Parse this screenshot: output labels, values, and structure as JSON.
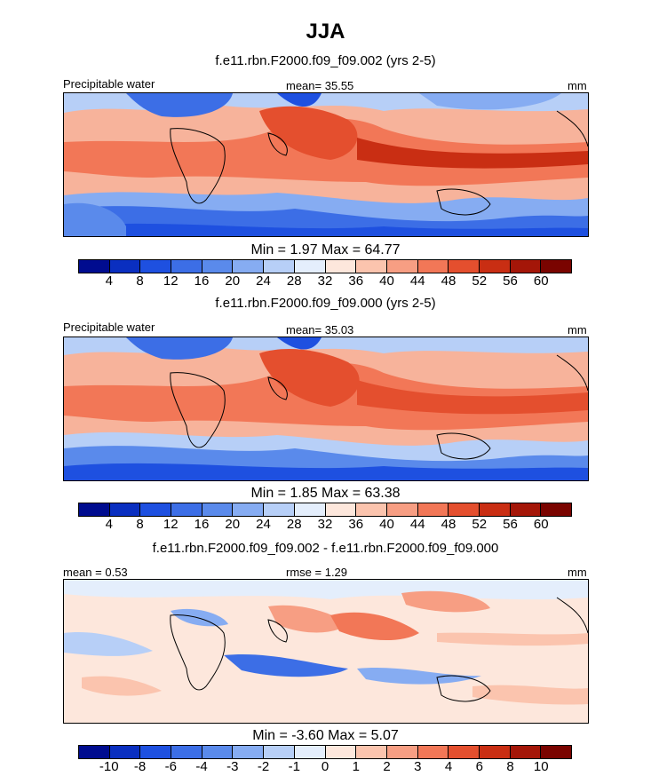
{
  "figure": {
    "title": "JJA",
    "units": "mm"
  },
  "chart_data": [
    {
      "type": "heatmap",
      "title": "f.e11.rbn.F2000.f09_f09.002 (yrs 2-5)",
      "variable": "Precipitable water",
      "mean_label": "mean=",
      "mean": "35.55",
      "units": "mm",
      "stats_text": "Min =   1.97 Max =  64.77",
      "colorbar": {
        "ticks": [
          "4",
          "8",
          "12",
          "16",
          "20",
          "24",
          "28",
          "32",
          "36",
          "40",
          "44",
          "48",
          "52",
          "56",
          "60"
        ],
        "colors": [
          "#000c8f",
          "#0a2fc0",
          "#1e50e0",
          "#3c6ee6",
          "#5a8aeb",
          "#86acf2",
          "#b7cff7",
          "#e4eefc",
          "#fde7dc",
          "#fbc4ae",
          "#f79e83",
          "#f27757",
          "#e44f2e",
          "#c92e13",
          "#a41608",
          "#7a0400"
        ]
      }
    },
    {
      "type": "heatmap",
      "title": "f.e11.rbn.F2000.f09_f09.000 (yrs 2-5)",
      "variable": "Precipitable water",
      "mean_label": "mean=",
      "mean": "35.03",
      "units": "mm",
      "stats_text": "Min =   1.85 Max =  63.38",
      "colorbar": {
        "ticks": [
          "4",
          "8",
          "12",
          "16",
          "20",
          "24",
          "28",
          "32",
          "36",
          "40",
          "44",
          "48",
          "52",
          "56",
          "60"
        ],
        "colors": [
          "#000c8f",
          "#0a2fc0",
          "#1e50e0",
          "#3c6ee6",
          "#5a8aeb",
          "#86acf2",
          "#b7cff7",
          "#e4eefc",
          "#fde7dc",
          "#fbc4ae",
          "#f79e83",
          "#f27757",
          "#e44f2e",
          "#c92e13",
          "#a41608",
          "#7a0400"
        ]
      }
    },
    {
      "type": "heatmap",
      "title": "f.e11.rbn.F2000.f09_f09.002 - f.e11.rbn.F2000.f09_f09.000",
      "mean_label": "mean =",
      "mean": "0.53",
      "rmse_label": "rmse =",
      "rmse": "1.29",
      "units": "mm",
      "stats_text": "Min =  -3.60 Max =   5.07",
      "colorbar": {
        "ticks": [
          "-10",
          "-8",
          "-6",
          "-4",
          "-3",
          "-2",
          "-1",
          "0",
          "1",
          "2",
          "3",
          "4",
          "6",
          "8",
          "10"
        ],
        "colors": [
          "#000c8f",
          "#0a2fc0",
          "#1e50e0",
          "#3c6ee6",
          "#5a8aeb",
          "#86acf2",
          "#b7cff7",
          "#e4eefc",
          "#fde7dc",
          "#fbc4ae",
          "#f79e83",
          "#f27757",
          "#e44f2e",
          "#c92e13",
          "#a41608",
          "#7a0400"
        ]
      }
    }
  ]
}
